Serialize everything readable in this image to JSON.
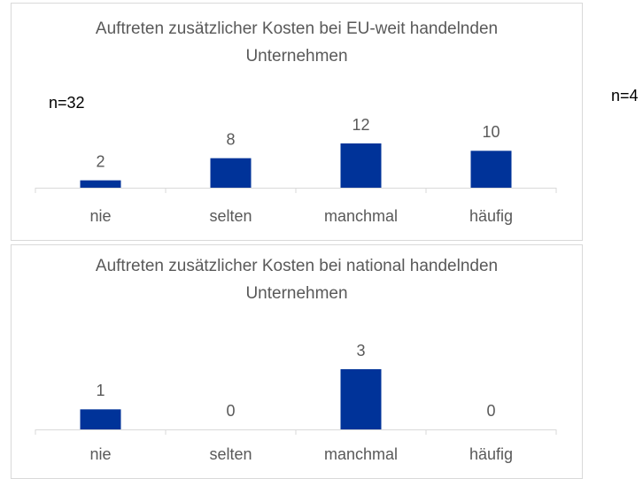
{
  "chart_data": [
    {
      "type": "bar",
      "title": "Auftreten zusätzlicher Kosten bei EU-weit handelnden Unternehmen",
      "annotation": "n=32",
      "categories": [
        "nie",
        "selten",
        "manchmal",
        "häufig"
      ],
      "values": [
        2,
        8,
        12,
        10
      ],
      "color": "#003399",
      "ylim": [
        0,
        12
      ]
    },
    {
      "type": "bar",
      "title": "Auftreten zusätzlicher Kosten bei national handelnden Unternehmen",
      "annotation": "n=4",
      "categories": [
        "nie",
        "selten",
        "manchmal",
        "häufig"
      ],
      "values": [
        1,
        0,
        3,
        0
      ],
      "color": "#003399",
      "ylim": [
        0,
        3
      ]
    }
  ]
}
